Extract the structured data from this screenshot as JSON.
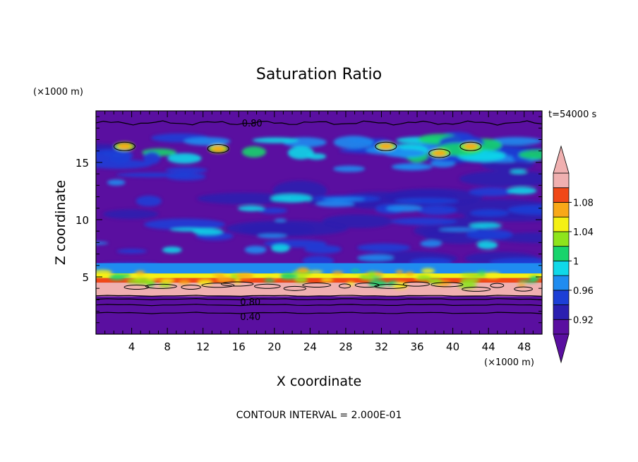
{
  "chart_data": {
    "type": "heatmap",
    "title": "Saturation Ratio",
    "xlabel": "X coordinate",
    "ylabel": "Z coordinate",
    "x_unit": "(×1000 m)",
    "y_unit": "(×1000 m)",
    "time_label": "t=54000 s",
    "footer": "CONTOUR INTERVAL = 2.000E-01",
    "xlim": [
      0,
      50
    ],
    "ylim": [
      0,
      19.5
    ],
    "x_ticks": [
      4,
      8,
      12,
      16,
      20,
      24,
      28,
      32,
      36,
      40,
      44,
      48
    ],
    "y_ticks": [
      5,
      10,
      15
    ],
    "colorbar": {
      "levels": [
        0.9,
        0.92,
        0.94,
        0.96,
        0.98,
        1.0,
        1.02,
        1.04,
        1.06,
        1.08,
        1.1
      ],
      "tick_labels": [
        "0.92",
        "0.96",
        "1",
        "1.04",
        "1.08"
      ],
      "colors": [
        "#5a0fa0",
        "#2b1fb0",
        "#1c3fd6",
        "#1f8cf0",
        "#10d8e8",
        "#18d46c",
        "#8ee41c",
        "#f4f014",
        "#f8a818",
        "#f04818",
        "#f0b0b0"
      ],
      "extend": "both"
    },
    "contour_labels": [
      "0.80",
      "0.80",
      "0.40"
    ],
    "bands": [
      {
        "z_range": [
          0,
          3.3
        ],
        "description": "dry layer, values below 0.90"
      },
      {
        "z_range": [
          3.3,
          5.3
        ],
        "description": "supersaturated cloud layer, values above 1.08"
      },
      {
        "z_range": [
          5.3,
          18.0
        ],
        "description": "mixed 0.90–1.00 with scattered moist patches"
      },
      {
        "z_range": [
          18.0,
          19.5
        ],
        "description": "dry top layer, values below 0.90"
      }
    ]
  }
}
